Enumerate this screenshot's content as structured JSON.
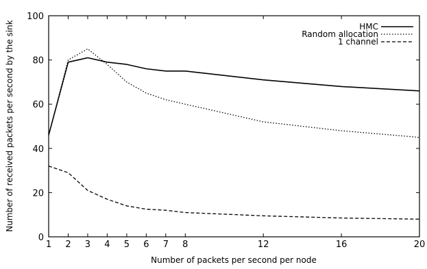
{
  "chart_data": {
    "type": "line",
    "title": "",
    "xlabel": "Number of packets per second per node",
    "ylabel": "Number of received packets per second by the sink",
    "xlim": [
      1,
      20
    ],
    "ylim": [
      0,
      100
    ],
    "xticks": [
      1,
      2,
      3,
      4,
      5,
      6,
      7,
      8,
      12,
      16,
      20
    ],
    "yticks": [
      0,
      20,
      40,
      60,
      80,
      100
    ],
    "grid": false,
    "legend_position": "top-right",
    "x": [
      1,
      2,
      3,
      4,
      5,
      6,
      7,
      8,
      12,
      16,
      20
    ],
    "series": [
      {
        "name": "HMC",
        "style": "solid",
        "values": [
          46,
          79,
          81,
          79,
          78,
          76,
          75,
          75,
          71,
          68,
          66
        ]
      },
      {
        "name": "Random allocation",
        "style": "dotted",
        "values": [
          46,
          80,
          85,
          78,
          70,
          65,
          62,
          60,
          52,
          48,
          45
        ]
      },
      {
        "name": "1 channel",
        "style": "dashed",
        "values": [
          32,
          29,
          21,
          17,
          14,
          12.5,
          12,
          11,
          9.5,
          8.5,
          8
        ]
      }
    ]
  }
}
